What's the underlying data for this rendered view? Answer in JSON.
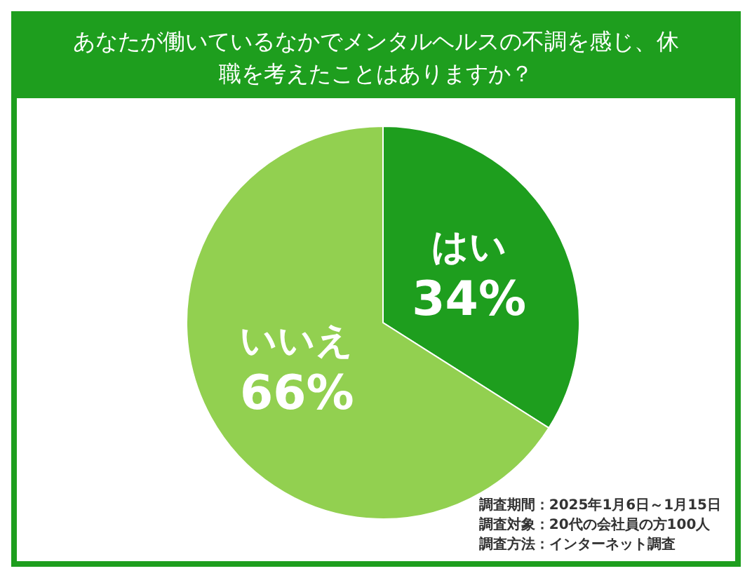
{
  "chart_data": {
    "type": "pie",
    "title": "あなたが働いているなかでメンタルヘルスの不調を感じ、休職を考えたことはありますか？",
    "categories": [
      "はい",
      "いいえ"
    ],
    "values": [
      34,
      66
    ],
    "value_labels": [
      "34%",
      "66%"
    ],
    "colors": [
      "#1e9e1e",
      "#92d050"
    ],
    "legend": false,
    "annotations": [
      "調査期間：2025年1月6日～1月15日",
      "調査対象：20代の会社員の方100人",
      "調査方法：インターネット調査"
    ]
  }
}
